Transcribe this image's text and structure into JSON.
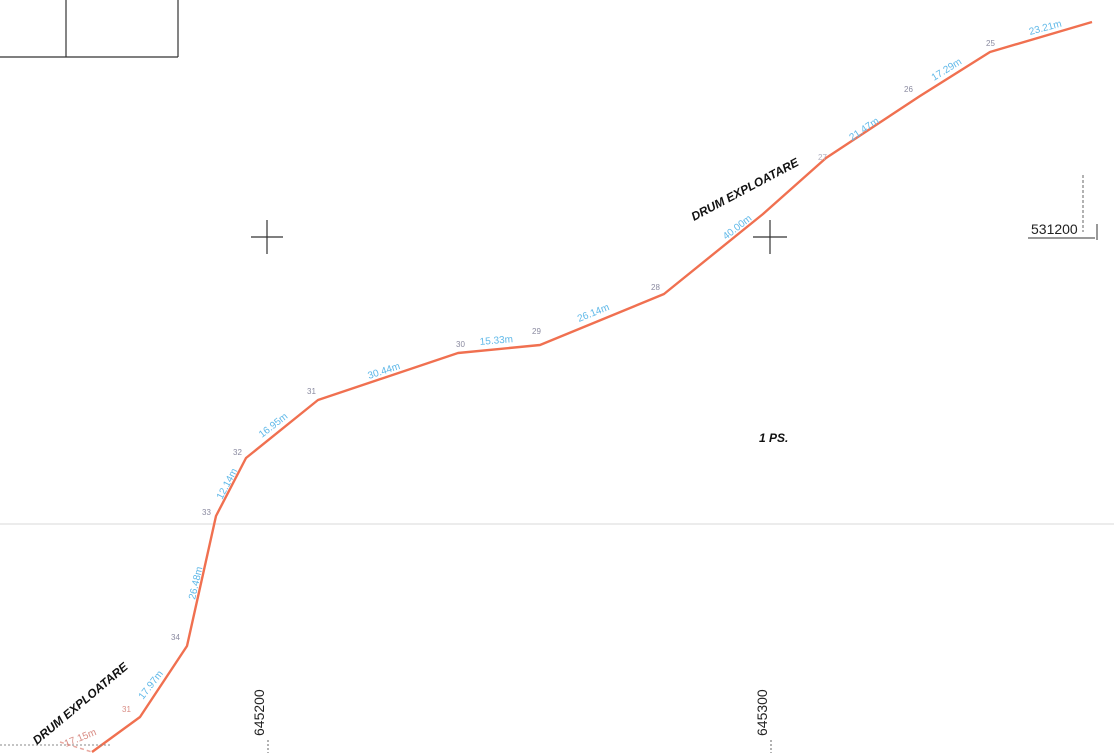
{
  "colors": {
    "boundary": "#f07050",
    "segment_label": "#5fb8e8",
    "vertex_label": "#8a8aa0",
    "lower_segment_label": "#d98c84",
    "ink": "#222222"
  },
  "road_labels": {
    "upper": "DRUM EXPLOATARE",
    "lower": "DRUM EXPLOATARE"
  },
  "parcel_label": "1 PS.",
  "grid": {
    "x_coord": "531200",
    "y_coord_left": "645200",
    "y_coord_right": "645300"
  },
  "segments": [
    "17.15m",
    "17.97m",
    "26.48m",
    "12.14m",
    "16.95m",
    "30.44m",
    "15.33m",
    "26.14m",
    "40.00m",
    "21.47m",
    "17.29m",
    "23.21m"
  ],
  "vertices": [
    "31",
    "34",
    "33",
    "32",
    "31",
    "30",
    "29",
    "28",
    "27",
    "26",
    "25"
  ]
}
